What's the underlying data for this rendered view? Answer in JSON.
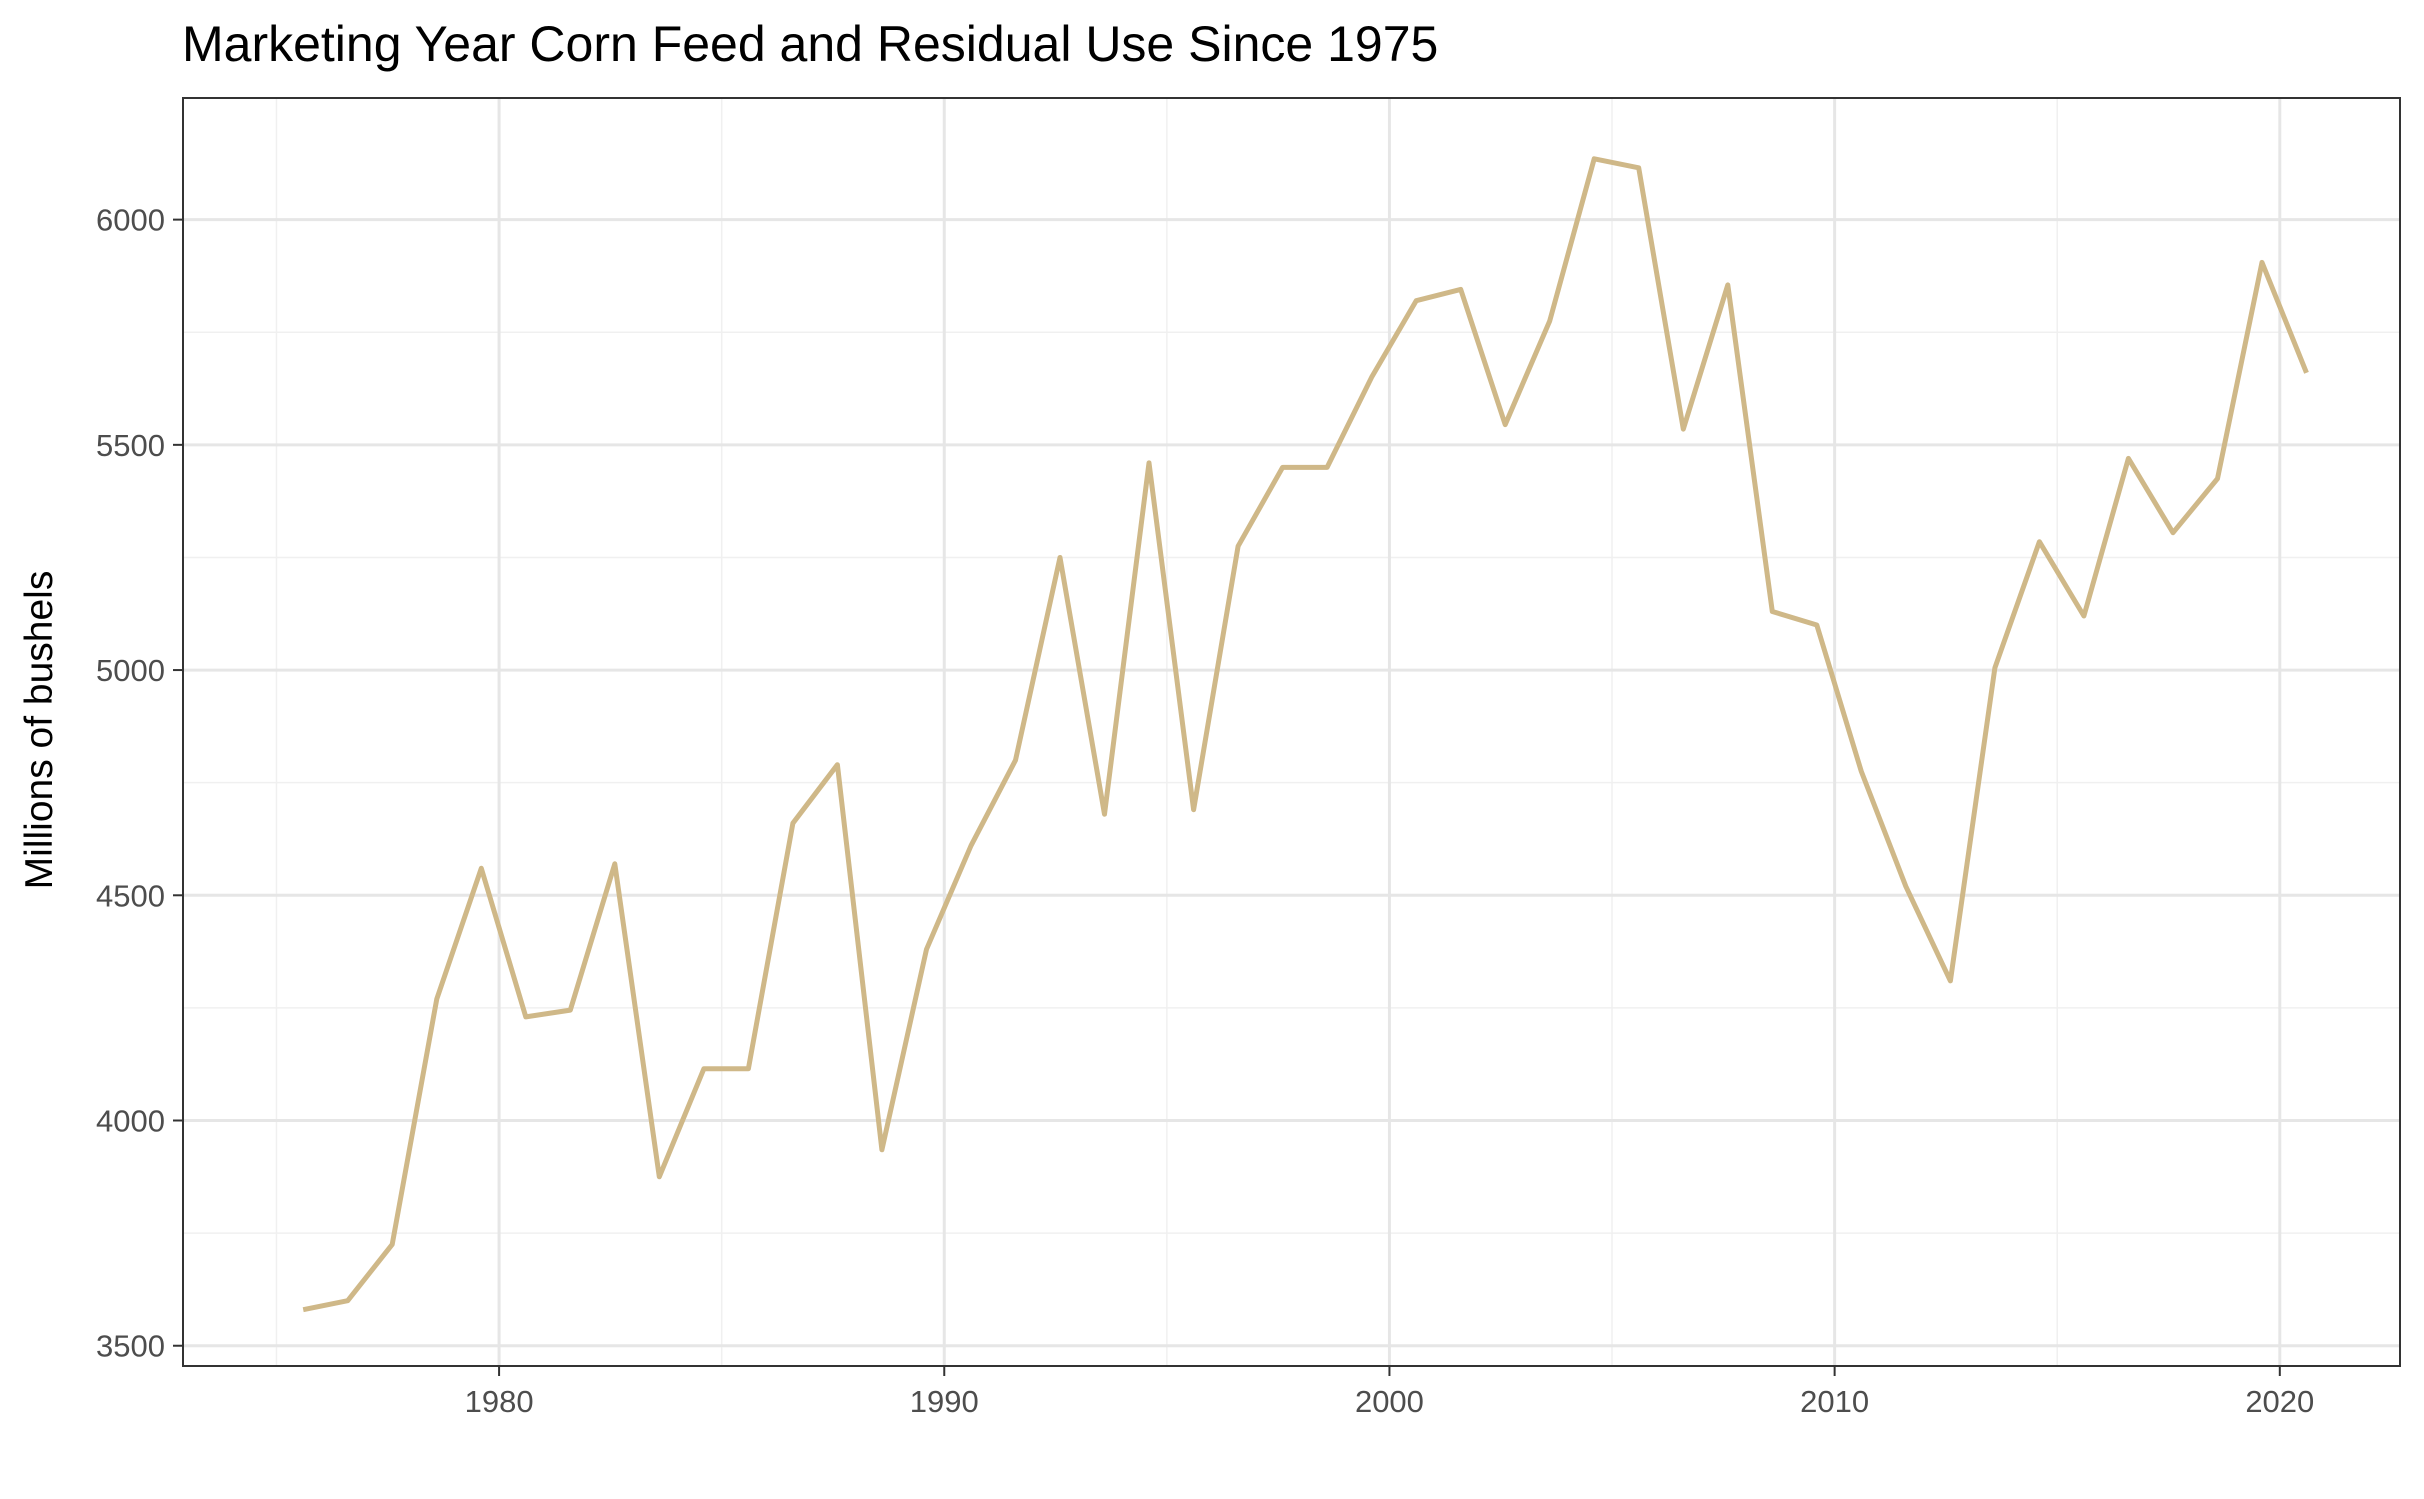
{
  "chart_data": {
    "type": "line",
    "title": "Marketing Year Corn Feed and Residual Use Since 1975",
    "xlabel": "",
    "ylabel": "Millions of bushels",
    "xlim": [
      1972.9,
      2022.7
    ],
    "ylim": [
      3455,
      6270
    ],
    "x_ticks": [
      1980,
      1990,
      2000,
      2010,
      2020
    ],
    "x_minor_ticks": [
      1975,
      1985,
      1995,
      2005,
      2015
    ],
    "y_ticks": [
      3500,
      4000,
      4500,
      5000,
      5500,
      6000
    ],
    "y_minor_ticks": [
      3750,
      4250,
      4750,
      5250,
      5750
    ],
    "grid": true,
    "line_color": "#cfb888",
    "series": [
      {
        "x": [
          1975.6,
          1976.6,
          1977.6,
          1978.6,
          1979.6,
          1980.6,
          1981.6,
          1982.6,
          1983.6,
          1984.6,
          1985.6,
          1986.6,
          1987.6,
          1988.6,
          1989.6,
          1990.6,
          1991.6,
          1992.6,
          1993.6,
          1994.6,
          1995.6,
          1996.6,
          1997.6,
          1998.6,
          1999.6,
          2000.6,
          2001.6,
          2002.6,
          2003.6,
          2004.6,
          2005.6,
          2006.6,
          2007.6,
          2008.6,
          2009.6,
          2010.6,
          2011.6,
          2012.6,
          2013.6,
          2014.6,
          2015.6,
          2016.6,
          2017.6,
          2018.6,
          2019.6,
          2020.6
        ],
        "values": [
          3580,
          3600,
          3725,
          4270,
          4560,
          4230,
          4245,
          4570,
          3875,
          4115,
          4115,
          4660,
          4790,
          3935,
          4380,
          4610,
          4800,
          5250,
          4680,
          5460,
          4690,
          5275,
          5450,
          5450,
          5650,
          5820,
          5845,
          5545,
          5775,
          6135,
          6115,
          5535,
          5855,
          5130,
          5100,
          4775,
          4520,
          4310,
          5005,
          5285,
          5120,
          5470,
          5305,
          5425,
          5905,
          5660
        ]
      }
    ]
  }
}
